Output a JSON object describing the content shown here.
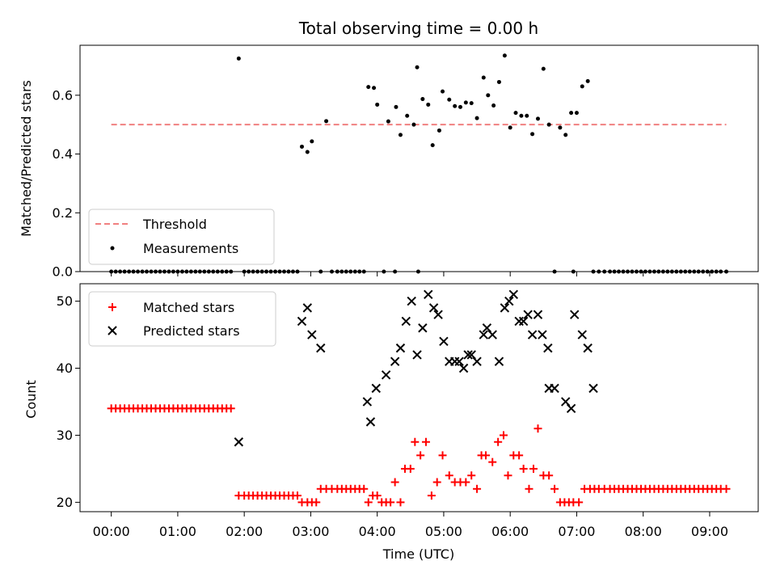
{
  "chart_data": [
    {
      "type": "scatter",
      "title": "Total observing time = 0.00 h",
      "xlabel": "",
      "ylabel": "Matched/Predicted stars",
      "ylim": [
        0,
        0.77
      ],
      "xlim": [
        -0.47,
        9.73
      ],
      "y_ticks": [
        0.0,
        0.2,
        0.4,
        0.6
      ],
      "y_tick_labels": [
        "0.0",
        "0.2",
        "0.4",
        "0.6"
      ],
      "grid": false,
      "legend_position": "lower-left",
      "series": [
        {
          "name": "Threshold",
          "kind": "dashed-line",
          "color": "#f08080",
          "x": [
            0.0,
            9.25
          ],
          "y": [
            0.5,
            0.5
          ]
        },
        {
          "name": "Measurements",
          "kind": "dots",
          "color": "#000000",
          "x": [
            0.0,
            0.067,
            0.133,
            0.2,
            0.267,
            0.333,
            0.4,
            0.467,
            0.533,
            0.6,
            0.667,
            0.733,
            0.8,
            0.867,
            0.933,
            1.0,
            1.067,
            1.133,
            1.2,
            1.267,
            1.333,
            1.4,
            1.467,
            1.533,
            1.6,
            1.667,
            1.733,
            1.8,
            1.917,
            2.0,
            2.067,
            2.133,
            2.2,
            2.267,
            2.333,
            2.4,
            2.467,
            2.533,
            2.6,
            2.667,
            2.733,
            2.8,
            2.867,
            2.95,
            3.017,
            3.15,
            3.233,
            3.317,
            3.4,
            3.467,
            3.533,
            3.6,
            3.667,
            3.733,
            3.8,
            3.867,
            3.95,
            4.0,
            4.1,
            4.167,
            4.267,
            4.283,
            4.35,
            4.45,
            4.55,
            4.6,
            4.617,
            4.683,
            4.767,
            4.833,
            4.933,
            4.983,
            5.083,
            5.167,
            5.25,
            5.333,
            5.417,
            5.5,
            5.6,
            5.667,
            5.75,
            5.833,
            5.917,
            6.0,
            6.083,
            6.167,
            6.25,
            6.333,
            6.417,
            6.5,
            6.583,
            6.667,
            6.75,
            6.833,
            6.917,
            6.95,
            7.0,
            7.083,
            7.167,
            7.25,
            7.333,
            7.417,
            7.5,
            7.567,
            7.633,
            7.7,
            7.767,
            7.833,
            7.9,
            7.967,
            8.033,
            8.1,
            8.167,
            8.233,
            8.3,
            8.367,
            8.433,
            8.5,
            8.567,
            8.633,
            8.7,
            8.767,
            8.833,
            8.9,
            8.967,
            9.033,
            9.1,
            9.167,
            9.25
          ],
          "y": [
            0.0,
            0.0,
            0.0,
            0.0,
            0.0,
            0.0,
            0.0,
            0.0,
            0.0,
            0.0,
            0.0,
            0.0,
            0.0,
            0.0,
            0.0,
            0.0,
            0.0,
            0.0,
            0.0,
            0.0,
            0.0,
            0.0,
            0.0,
            0.0,
            0.0,
            0.0,
            0.0,
            0.0,
            0.725,
            0.0,
            0.0,
            0.0,
            0.0,
            0.0,
            0.0,
            0.0,
            0.0,
            0.0,
            0.0,
            0.0,
            0.0,
            0.0,
            0.425,
            0.407,
            0.443,
            0.0,
            0.512,
            0.0,
            0.0,
            0.0,
            0.0,
            0.0,
            0.0,
            0.0,
            0.0,
            0.628,
            0.625,
            0.568,
            0.0,
            0.511,
            0.0,
            0.56,
            0.465,
            0.53,
            0.5,
            0.695,
            0.0,
            0.587,
            0.568,
            0.43,
            0.48,
            0.613,
            0.585,
            0.563,
            0.56,
            0.575,
            0.573,
            0.522,
            0.66,
            0.6,
            0.565,
            0.645,
            0.735,
            0.49,
            0.54,
            0.53,
            0.53,
            0.468,
            0.52,
            0.69,
            0.5,
            0.0,
            0.49,
            0.465,
            0.54,
            0.0,
            0.54,
            0.63,
            0.648,
            0.0,
            0.0,
            0.0,
            0.0,
            0.0,
            0.0,
            0.0,
            0.0,
            0.0,
            0.0,
            0.0,
            0.0,
            0.0,
            0.0,
            0.0,
            0.0,
            0.0,
            0.0,
            0.0,
            0.0,
            0.0,
            0.0,
            0.0,
            0.0,
            0.0,
            0.0,
            0.0,
            0.0,
            0.0,
            0.0
          ]
        }
      ]
    },
    {
      "type": "scatter",
      "title": "",
      "xlabel": "Time (UTC)",
      "ylabel": "Count",
      "ylim": [
        18.6,
        52.6
      ],
      "xlim": [
        -0.47,
        9.73
      ],
      "y_ticks": [
        20,
        30,
        40,
        50
      ],
      "y_tick_labels": [
        "20",
        "30",
        "40",
        "50"
      ],
      "x_ticks": [
        0,
        1,
        2,
        3,
        4,
        5,
        6,
        7,
        8,
        9
      ],
      "x_tick_labels": [
        "00:00",
        "01:00",
        "02:00",
        "03:00",
        "04:00",
        "05:00",
        "06:00",
        "07:00",
        "08:00",
        "09:00"
      ],
      "grid": false,
      "legend_position": "top-left",
      "series": [
        {
          "name": "Matched stars",
          "kind": "plus",
          "color": "#ff0000",
          "x": [
            0.0,
            0.067,
            0.133,
            0.2,
            0.267,
            0.333,
            0.4,
            0.467,
            0.533,
            0.6,
            0.667,
            0.733,
            0.8,
            0.867,
            0.933,
            1.0,
            1.067,
            1.133,
            1.2,
            1.267,
            1.333,
            1.4,
            1.467,
            1.533,
            1.6,
            1.667,
            1.733,
            1.8,
            1.917,
            2.0,
            2.067,
            2.133,
            2.2,
            2.267,
            2.333,
            2.4,
            2.467,
            2.533,
            2.6,
            2.667,
            2.733,
            2.8,
            2.867,
            2.95,
            3.017,
            3.083,
            3.15,
            3.233,
            3.317,
            3.4,
            3.467,
            3.533,
            3.6,
            3.667,
            3.733,
            3.8,
            3.867,
            3.933,
            4.0,
            4.067,
            4.133,
            4.2,
            4.267,
            4.35,
            4.417,
            4.5,
            4.567,
            4.65,
            4.733,
            4.817,
            4.9,
            4.983,
            5.083,
            5.167,
            5.25,
            5.333,
            5.417,
            5.5,
            5.567,
            5.633,
            5.733,
            5.817,
            5.9,
            5.967,
            6.05,
            6.133,
            6.2,
            6.283,
            6.35,
            6.417,
            6.5,
            6.583,
            6.667,
            6.75,
            6.817,
            6.883,
            6.95,
            7.033,
            7.117,
            7.2,
            7.267,
            7.333,
            7.417,
            7.5,
            7.567,
            7.633,
            7.7,
            7.767,
            7.833,
            7.9,
            7.967,
            8.033,
            8.1,
            8.167,
            8.233,
            8.3,
            8.367,
            8.433,
            8.5,
            8.567,
            8.633,
            8.7,
            8.767,
            8.833,
            8.9,
            8.967,
            9.033,
            9.1,
            9.167,
            9.25
          ],
          "y": [
            34,
            34,
            34,
            34,
            34,
            34,
            34,
            34,
            34,
            34,
            34,
            34,
            34,
            34,
            34,
            34,
            34,
            34,
            34,
            34,
            34,
            34,
            34,
            34,
            34,
            34,
            34,
            34,
            21,
            21,
            21,
            21,
            21,
            21,
            21,
            21,
            21,
            21,
            21,
            21,
            21,
            21,
            20,
            20,
            20,
            20,
            22,
            22,
            22,
            22,
            22,
            22,
            22,
            22,
            22,
            22,
            20,
            21,
            21,
            20,
            20,
            20,
            23,
            20,
            25,
            25,
            29,
            27,
            29,
            21,
            23,
            27,
            24,
            23,
            23,
            23,
            24,
            22,
            27,
            27,
            26,
            29,
            30,
            24,
            27,
            27,
            25,
            22,
            25,
            31,
            24,
            24,
            22,
            20,
            20,
            20,
            20,
            20,
            22,
            22,
            22,
            22,
            22,
            22,
            22,
            22,
            22,
            22,
            22,
            22,
            22,
            22,
            22,
            22,
            22,
            22,
            22,
            22,
            22,
            22,
            22,
            22,
            22,
            22,
            22,
            22,
            22,
            22,
            22,
            22
          ]
        },
        {
          "name": "Predicted stars",
          "kind": "cross",
          "color": "#000000",
          "x": [
            1.917,
            2.867,
            2.95,
            3.017,
            3.15,
            3.85,
            3.9,
            3.983,
            4.133,
            4.267,
            4.35,
            4.433,
            4.517,
            4.6,
            4.683,
            4.767,
            4.85,
            4.917,
            5.0,
            5.083,
            5.167,
            5.233,
            5.3,
            5.367,
            5.417,
            5.5,
            5.6,
            5.65,
            5.733,
            5.833,
            5.917,
            5.983,
            6.05,
            6.133,
            6.2,
            6.267,
            6.333,
            6.417,
            6.483,
            6.567,
            6.583,
            6.667,
            6.833,
            6.917,
            6.967,
            7.083,
            7.167,
            7.25
          ],
          "y": [
            29,
            47,
            49,
            45,
            43,
            35,
            32,
            37,
            39,
            41,
            43,
            47,
            50,
            42,
            46,
            51,
            49,
            48,
            44,
            41,
            41,
            41,
            40,
            42,
            42,
            41,
            45,
            46,
            45,
            41,
            49,
            50,
            51,
            47,
            47,
            48,
            45,
            48,
            45,
            43,
            37,
            37,
            35,
            34,
            48,
            45,
            43,
            37
          ]
        }
      ]
    }
  ]
}
